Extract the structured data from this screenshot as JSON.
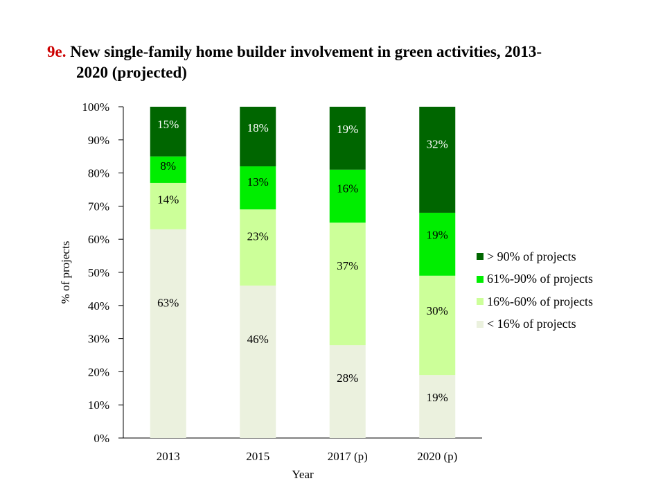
{
  "title": {
    "number": "9e.",
    "line1": "New single-family home builder involvement in green activities, 2013-",
    "line2": "2020 (projected)"
  },
  "chart_data": {
    "type": "bar",
    "stacked": true,
    "xlabel": "Year",
    "ylabel": "% of projects",
    "ylim": [
      0,
      100
    ],
    "yticks": [
      "0%",
      "10%",
      "20%",
      "30%",
      "40%",
      "50%",
      "60%",
      "70%",
      "80%",
      "90%",
      "100%"
    ],
    "categories": [
      "2013",
      "2015",
      "2017 (p)",
      "2020 (p)"
    ],
    "series": [
      {
        "name": "< 16% of projects",
        "color": "#ebf1de",
        "values": [
          63,
          46,
          28,
          19
        ],
        "labels": [
          "63%",
          "46%",
          "28%",
          "19%"
        ]
      },
      {
        "name": "16%-60% of projects",
        "color": "#ccff99",
        "values": [
          14,
          23,
          37,
          30
        ],
        "labels": [
          "14%",
          "23%",
          "37%",
          "30%"
        ]
      },
      {
        "name": "61%-90% of projects",
        "color": "#00ee00",
        "values": [
          8,
          13,
          16,
          19
        ],
        "labels": [
          "8%",
          "13%",
          "16%",
          "19%"
        ]
      },
      {
        "name": "> 90% of projects",
        "color": "#006600",
        "values": [
          15,
          18,
          19,
          32
        ],
        "labels": [
          "15%",
          "18%",
          "19%",
          "32%"
        ]
      }
    ],
    "legend_position": "right",
    "grid": false
  }
}
